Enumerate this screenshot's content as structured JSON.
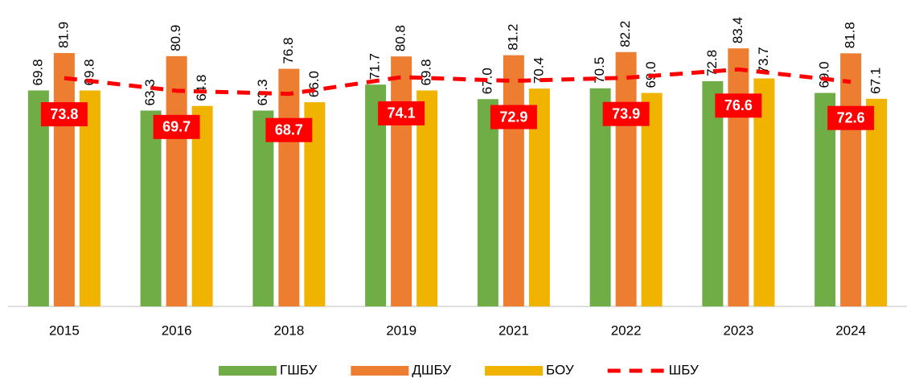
{
  "chart_data": {
    "type": "bar",
    "categories": [
      "2015",
      "2016",
      "2018",
      "2019",
      "2021",
      "2022",
      "2023",
      "2024"
    ],
    "series": [
      {
        "name": "ГШБУ",
        "color": "#70ad47",
        "values": [
          69.8,
          63.3,
          63.3,
          71.7,
          67.0,
          70.5,
          72.8,
          69.0
        ],
        "value_labels": [
          "69.8",
          "63.3",
          "63.3",
          "71.7",
          "67.0",
          "70.5",
          "72.8",
          "69.0"
        ]
      },
      {
        "name": "ДШБУ",
        "color": "#ed7d31",
        "values": [
          81.9,
          80.9,
          76.8,
          80.8,
          81.2,
          82.2,
          83.4,
          81.8
        ],
        "value_labels": [
          "81.9",
          "80.9",
          "76.8",
          "80.8",
          "81.2",
          "82.2",
          "83.4",
          "81.8"
        ]
      },
      {
        "name": "БОУ",
        "color": "#f0b400",
        "values": [
          69.8,
          64.8,
          66.0,
          69.8,
          70.4,
          69.0,
          73.7,
          67.1
        ],
        "value_labels": [
          "69.8",
          "64.8",
          "66.0",
          "69.8",
          "70.4",
          "69.0",
          "73.7",
          "67.1"
        ]
      },
      {
        "name": "ШБУ",
        "color": "#ff0000",
        "type": "line",
        "values": [
          73.8,
          69.7,
          68.7,
          74.1,
          72.9,
          73.9,
          76.6,
          72.6
        ]
      }
    ],
    "ylim": [
      0,
      85
    ],
    "grid": false
  }
}
